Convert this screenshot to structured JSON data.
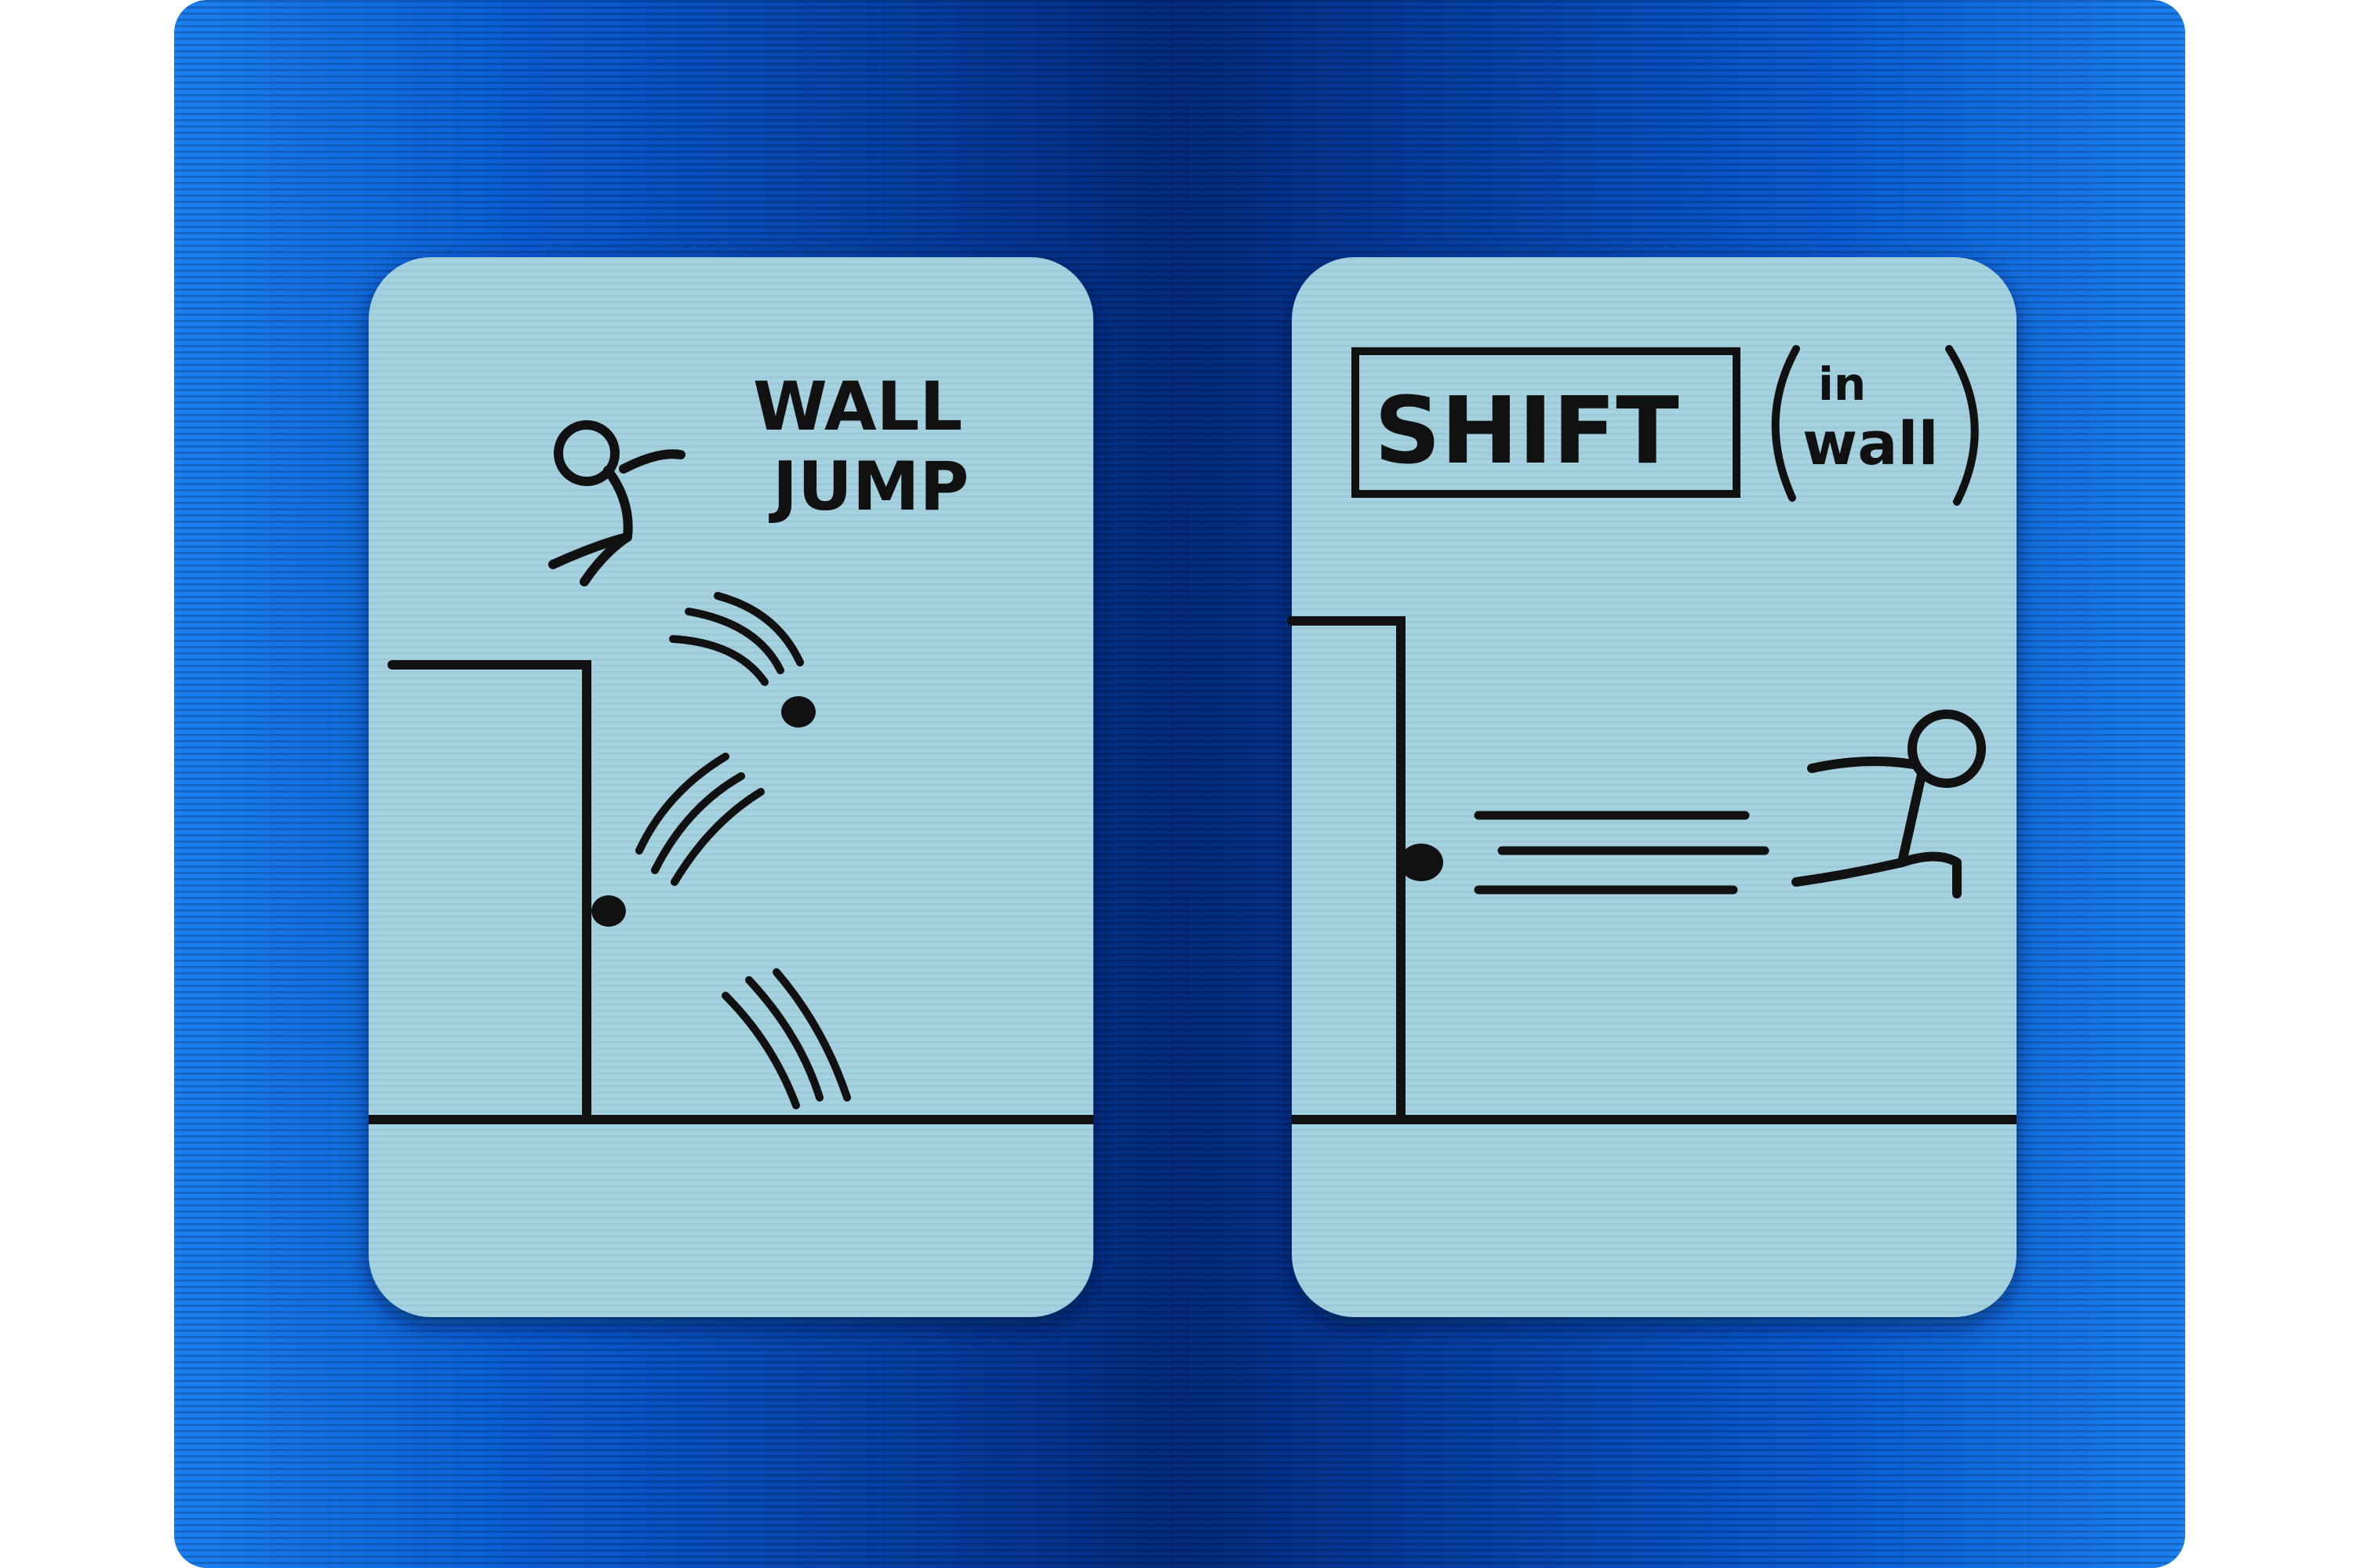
{
  "colors": {
    "board_dark": "#032a7c",
    "board_mid": "#0a5bd4",
    "board_light": "#1b80f0",
    "card_fill": "#a5d2e0",
    "ink": "#111111"
  },
  "cards": [
    {
      "id": "wall-jump",
      "title_line1": "WALL",
      "title_line2": "JUMP",
      "figures": [
        "stick-figure-jumping-icon",
        "wall-icon",
        "motion-arcs-icon",
        "ball-icon"
      ]
    },
    {
      "id": "shift",
      "title": "SHIFT",
      "note_line1": "in",
      "note_line2": "wall",
      "figures": [
        "stick-figure-dashing-icon",
        "wall-icon",
        "speed-lines-icon",
        "ball-icon"
      ]
    }
  ]
}
